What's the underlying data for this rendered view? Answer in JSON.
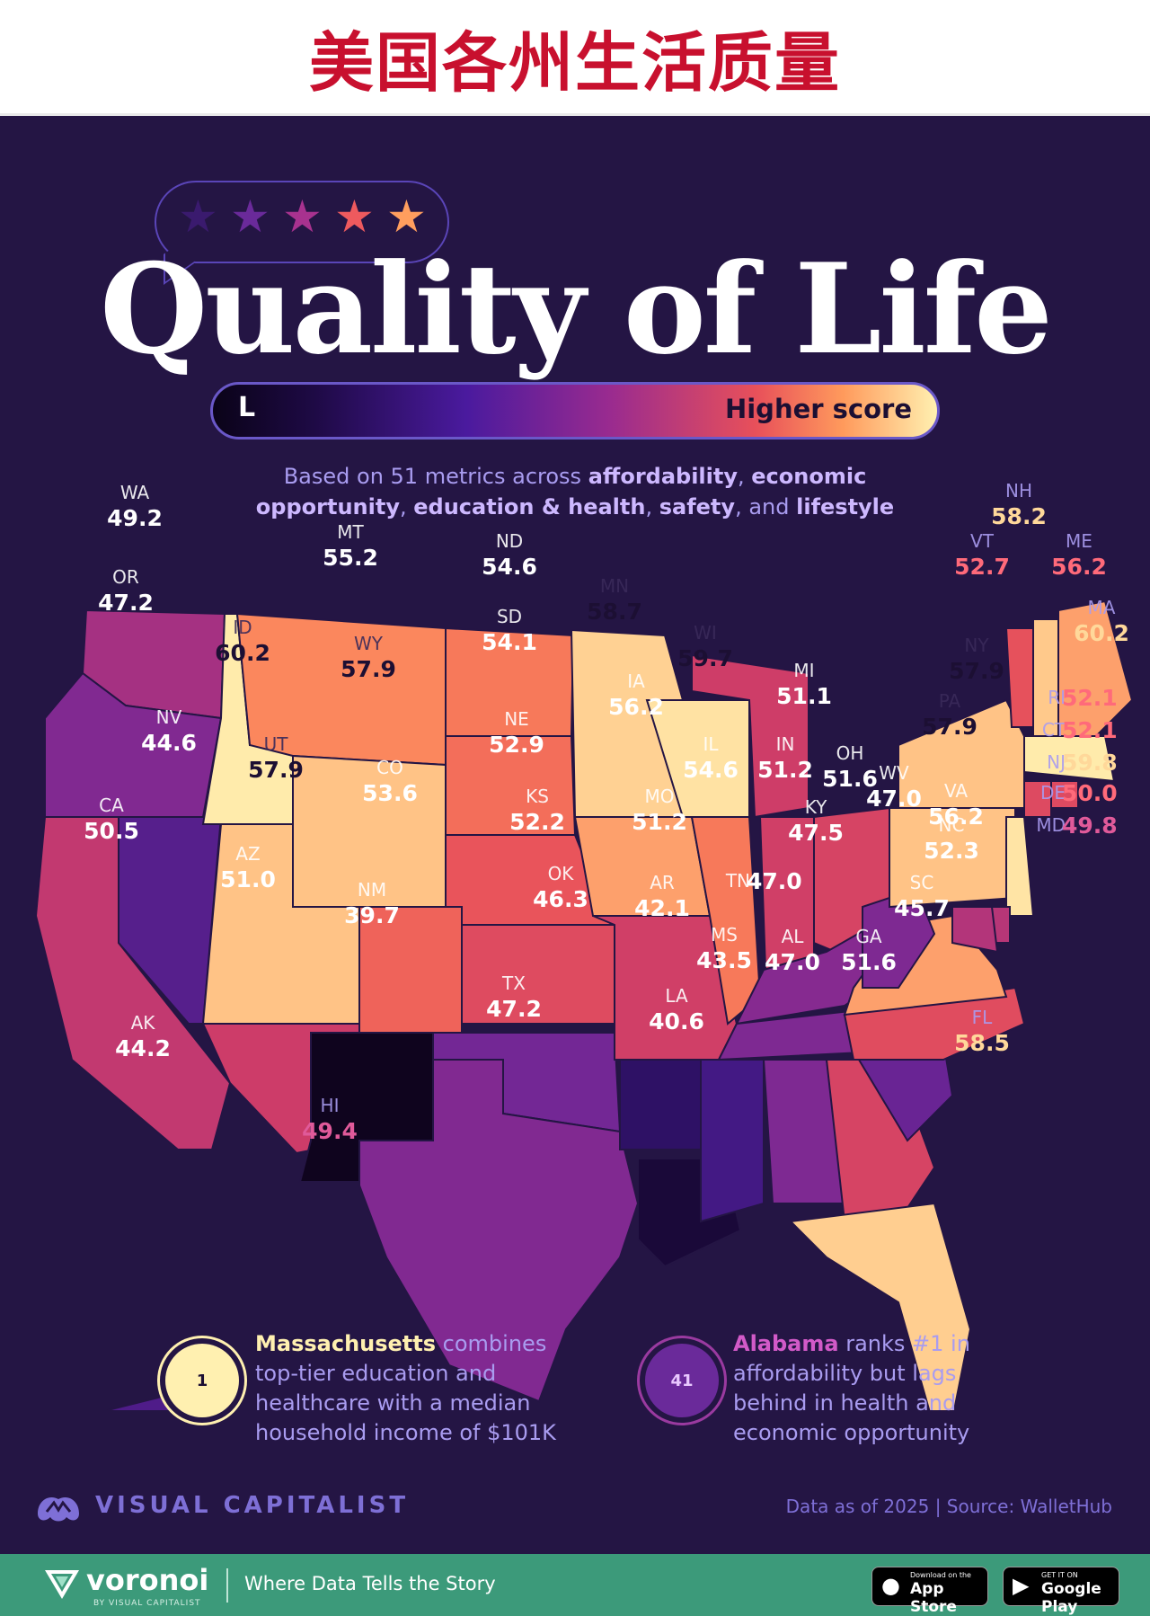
{
  "banner": {
    "title": "美国各州生活质量"
  },
  "header": {
    "title": "Quality of Life",
    "legend_low": "L",
    "legend_high": "Higher score",
    "subtitle_line1_prefix": "Based on 51 metrics across ",
    "subtitle_line1_b1": "affordability",
    "subtitle_line1_sep": ", ",
    "subtitle_line1_b2": "economic",
    "subtitle_line2_b1": "opportunity",
    "subtitle_line2_sep1": ", ",
    "subtitle_line2_b2": "education & health",
    "subtitle_line2_sep2": ", ",
    "subtitle_line2_b3": "safety",
    "subtitle_line2_sep3": ", and ",
    "subtitle_line2_b4": "lifestyle"
  },
  "stars": {
    "count": 5,
    "colors": [
      "#3a1a6e",
      "#6a2a9a",
      "#a8328f",
      "#ee5a5e",
      "#ff9e5e"
    ]
  },
  "color_scale": {
    "low": "#0a0318",
    "mid_low": "#4a1a9e",
    "mid": "#9a2b8f",
    "mid_high": "#e8505a",
    "high": "#ff9a5c",
    "top": "#fff0b0"
  },
  "states": [
    {
      "abbr": "WA",
      "score": "49.2"
    },
    {
      "abbr": "OR",
      "score": "47.2"
    },
    {
      "abbr": "CA",
      "score": "50.5"
    },
    {
      "abbr": "NV",
      "score": "44.6"
    },
    {
      "abbr": "ID",
      "score": "60.2"
    },
    {
      "abbr": "MT",
      "score": "55.2"
    },
    {
      "abbr": "WY",
      "score": "57.9"
    },
    {
      "abbr": "UT",
      "score": "57.9"
    },
    {
      "abbr": "AZ",
      "score": "51.0"
    },
    {
      "abbr": "CO",
      "score": "53.6"
    },
    {
      "abbr": "NM",
      "score": "39.7"
    },
    {
      "abbr": "ND",
      "score": "54.6"
    },
    {
      "abbr": "SD",
      "score": "54.1"
    },
    {
      "abbr": "NE",
      "score": "52.9"
    },
    {
      "abbr": "KS",
      "score": "52.2"
    },
    {
      "abbr": "OK",
      "score": "46.3"
    },
    {
      "abbr": "TX",
      "score": "47.2"
    },
    {
      "abbr": "MN",
      "score": "58.7"
    },
    {
      "abbr": "IA",
      "score": "56.2"
    },
    {
      "abbr": "MO",
      "score": "51.2"
    },
    {
      "abbr": "AR",
      "score": "42.1"
    },
    {
      "abbr": "LA",
      "score": "40.6"
    },
    {
      "abbr": "WI",
      "score": "59.7"
    },
    {
      "abbr": "IL",
      "score": "54.6"
    },
    {
      "abbr": "MI",
      "score": "51.1"
    },
    {
      "abbr": "IN",
      "score": "51.2"
    },
    {
      "abbr": "OH",
      "score": "51.6"
    },
    {
      "abbr": "KY",
      "score": "47.5"
    },
    {
      "abbr": "TN",
      "score": "47.0"
    },
    {
      "abbr": "MS",
      "score": "43.5"
    },
    {
      "abbr": "AL",
      "score": "47.0"
    },
    {
      "abbr": "GA",
      "score": "51.6"
    },
    {
      "abbr": "FL",
      "score": "58.5"
    },
    {
      "abbr": "SC",
      "score": "45.7"
    },
    {
      "abbr": "NC",
      "score": "52.3"
    },
    {
      "abbr": "VA",
      "score": "56.2"
    },
    {
      "abbr": "WV",
      "score": "47.0"
    },
    {
      "abbr": "PA",
      "score": "57.9"
    },
    {
      "abbr": "NY",
      "score": "57.9"
    },
    {
      "abbr": "VT",
      "score": "52.7"
    },
    {
      "abbr": "NH",
      "score": "58.2"
    },
    {
      "abbr": "ME",
      "score": "56.2"
    },
    {
      "abbr": "MA",
      "score": "60.2"
    },
    {
      "abbr": "RI",
      "score": "52.1"
    },
    {
      "abbr": "CT",
      "score": "52.1"
    },
    {
      "abbr": "NJ",
      "score": "59.8"
    },
    {
      "abbr": "DE",
      "score": "50.0"
    },
    {
      "abbr": "MD",
      "score": "49.8"
    },
    {
      "abbr": "AK",
      "score": "44.2"
    },
    {
      "abbr": "HI",
      "score": "49.4"
    }
  ],
  "callouts": {
    "left": {
      "rank": "1",
      "state": "Massachusetts",
      "line1_rest": " combines",
      "line2": "top-tier education and",
      "line3": "healthcare with a median",
      "line4": "household income of $101K"
    },
    "right": {
      "rank": "41",
      "state": "Alabama",
      "line1_rest": " ranks #1 in",
      "line2": "affordability but lags",
      "line3": "behind in health and",
      "line4": "economic opportunity"
    }
  },
  "credits": {
    "publisher": "VISUAL CAPITALIST",
    "source": "Data as of 2025 | Source: WalletHub"
  },
  "footer": {
    "brand": "voronoi",
    "brand_sub": "BY VISUAL CAPITALIST",
    "tagline": "Where Data Tells the Story",
    "appstore_small": "Download on the",
    "appstore_big": "App Store",
    "googleplay_small": "GET IT ON",
    "googleplay_big": "Google Play"
  }
}
